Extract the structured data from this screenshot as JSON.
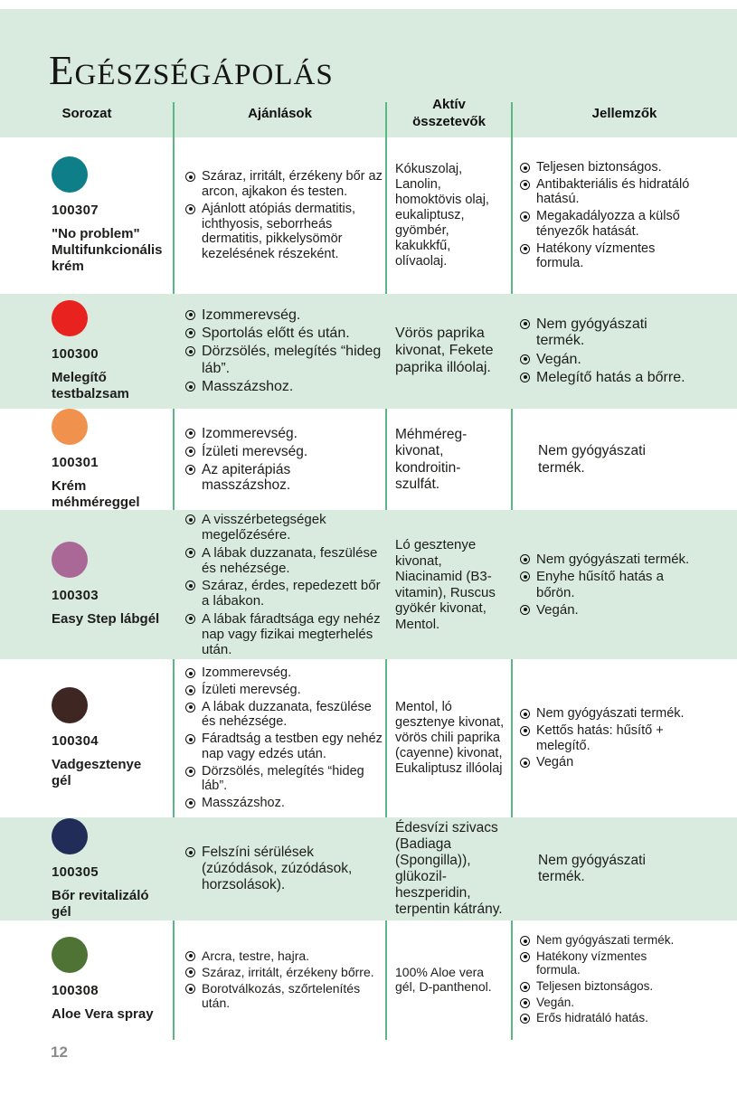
{
  "page": {
    "title": "Egészségápolás",
    "page_number": "12"
  },
  "colors": {
    "band_green": "#d8ebde",
    "divider_green": "#5cb787"
  },
  "table": {
    "headers": [
      "Sorozat",
      "Ajánlások",
      "Aktív összetevők",
      "Jellemzők"
    ],
    "rows": [
      {
        "code": "100307",
        "name": "\"No problem\"\nMultifunkcionális krém",
        "dot_color": "#0e7e88",
        "shaded": false,
        "recommendations": [
          "Száraz, irritált, érzékeny bőr az arcon, ajkakon és testen.",
          "Ajánlott atópiás dermatitis, ichthyosis, seborrheás dermatitis, pikkelysömör kezelésének részeként."
        ],
        "ingredients": "Kókuszolaj, Lanolin, homoktövis olaj, eukaliptusz, gyömbér, kakukkfű, olívaolaj.",
        "features": [
          "Teljesen biztonságos.",
          "Antibakteriális és hidratáló hatású.",
          "Megakadályozza a külső tényezők hatását.",
          "Hatékony vízmentes formula."
        ],
        "features_bulleted": true
      },
      {
        "code": "100300",
        "name": "Melegítő\ntestbalzsam",
        "dot_color": "#e8231f",
        "shaded": true,
        "recommendations": [
          "Izommerevség.",
          "Sportolás előtt és után.",
          "Dörzsölés, melegítés “hideg láb”.",
          "Masszázshoz."
        ],
        "ingredients": "Vörös paprika kivonat, Fekete paprika illóolaj.",
        "features": [
          "Nem gyógyászati termék.",
          "Vegán.",
          "Melegítő hatás a bőrre."
        ],
        "features_bulleted": true
      },
      {
        "code": "100301",
        "name": "Krém méhméreggel",
        "dot_color": "#f0914d",
        "shaded": false,
        "recommendations": [
          "Izommerevség.",
          "Ízületi merevség.",
          "Az apiterápiás masszázshoz."
        ],
        "ingredients": "Méhméreg-kivonat, kondroitin-szulfát.",
        "features": [
          "Nem gyógyászati termék."
        ],
        "features_bulleted": false
      },
      {
        "code": "100303",
        "name": "Easy Step lábgél",
        "dot_color": "#a96896",
        "shaded": true,
        "recommendations": [
          "A visszérbetegségek megelőzésére.",
          "A lábak duzzanata, feszülése és nehézsége.",
          "Száraz, érdes, repedezett bőr a lábakon.",
          "A lábak fáradtsága egy nehéz nap vagy fizikai megterhelés után."
        ],
        "ingredients": "Ló gesztenye kivonat, Niacinamid (B3-vitamin), Ruscus gyökér kivonat, Mentol.",
        "features": [
          "Nem gyógyászati termék.",
          "Enyhe hűsítő hatás a bőrön.",
          "Vegán."
        ],
        "features_bulleted": true
      },
      {
        "code": "100304",
        "name": "Vadgesztenye gél",
        "dot_color": "#3e2723",
        "shaded": false,
        "recommendations": [
          "Izommerevség.",
          "Ízületi merevség.",
          "A lábak duzzanata, feszülése és nehézsége.",
          "Fáradtság a testben egy nehéz nap vagy edzés után.",
          "Dörzsölés, melegítés “hideg láb”.",
          "Masszázshoz."
        ],
        "ingredients": "Mentol, ló gesztenye kivonat, vörös chili paprika (cayenne) kivonat, Eukaliptusz illóolaj",
        "features": [
          "Nem gyógyászati termék.",
          "Kettős hatás: hűsítő + melegítő.",
          "Vegán"
        ],
        "features_bulleted": true
      },
      {
        "code": "100305",
        "name": "Bőr revitalizáló gél",
        "dot_color": "#222c58",
        "shaded": true,
        "recommendations": [
          "Felszíni sérülések (zúzódások, zúzódások, horzsolások)."
        ],
        "ingredients": "Édesvízi szivacs (Badiaga (Spongilla)), glükozil-heszperidin, terpentin kátrány.",
        "features": [
          "Nem gyógyászati termék."
        ],
        "features_bulleted": false
      },
      {
        "code": "100308",
        "name": "Aloe Vera spray",
        "dot_color": "#4e7334",
        "shaded": false,
        "recommendations": [
          "Arcra, testre, hajra.",
          "Száraz, irritált, érzékeny bőrre.",
          "Borotválkozás, szőrtelenítés után."
        ],
        "ingredients": "100% Aloe vera gél, D-panthenol.",
        "features": [
          "Nem gyógyászati termék.",
          "Hatékony vízmentes formula.",
          "Teljesen biztonságos.",
          "Vegán.",
          "Erős hidratáló hatás."
        ],
        "features_bulleted": true
      }
    ]
  }
}
